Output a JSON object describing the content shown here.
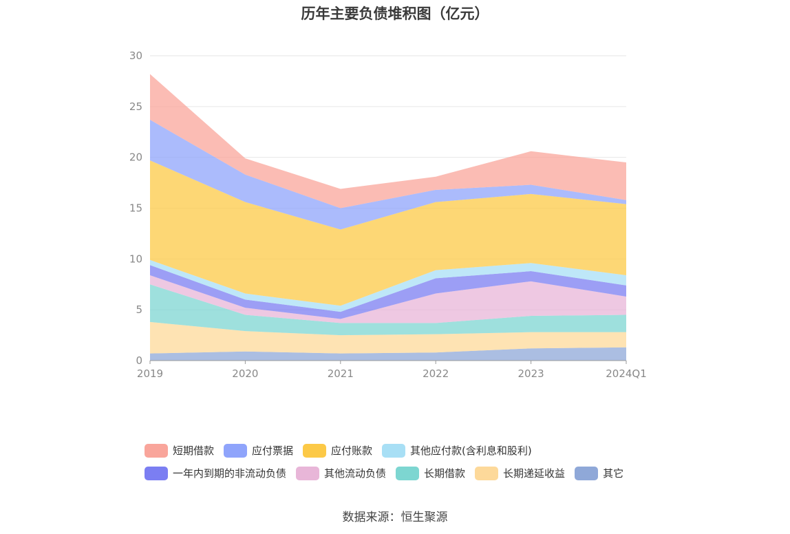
{
  "chart_data": {
    "type": "area",
    "stacked": true,
    "title": "历年主要负债堆积图（亿元）",
    "categories": [
      "2019",
      "2020",
      "2021",
      "2022",
      "2023",
      "2024Q1"
    ],
    "ylim": [
      0,
      30
    ],
    "yticks": [
      0,
      5,
      10,
      15,
      20,
      25,
      30
    ],
    "grid": "horizontal",
    "legend_position": "bottom",
    "series": [
      {
        "name": "其它",
        "color": "#8fa8d8",
        "values": [
          0.7,
          0.9,
          0.7,
          0.8,
          1.2,
          1.3
        ]
      },
      {
        "name": "长期递延收益",
        "color": "#fdd99a",
        "values": [
          3.1,
          2.0,
          1.8,
          1.8,
          1.6,
          1.5
        ]
      },
      {
        "name": "长期借款",
        "color": "#7dd6d1",
        "values": [
          3.7,
          1.6,
          1.2,
          1.1,
          1.6,
          1.7
        ]
      },
      {
        "name": "其他流动负债",
        "color": "#e8b6d8",
        "values": [
          0.9,
          0.7,
          0.4,
          2.9,
          3.4,
          1.8
        ]
      },
      {
        "name": "一年内到期的非流动负债",
        "color": "#7b7ef2",
        "values": [
          1.0,
          0.8,
          0.7,
          1.5,
          1.0,
          1.1
        ]
      },
      {
        "name": "其他应付款(含利息和股利)",
        "color": "#a8dff5",
        "values": [
          0.5,
          0.6,
          0.6,
          0.8,
          0.8,
          1.0
        ]
      },
      {
        "name": "应付账款",
        "color": "#fcc947",
        "values": [
          9.8,
          9.0,
          7.5,
          6.7,
          6.8,
          7.0
        ]
      },
      {
        "name": "应付票据",
        "color": "#8fa4fb",
        "values": [
          4.0,
          2.7,
          2.1,
          1.2,
          0.9,
          0.4
        ]
      },
      {
        "name": "短期借款",
        "color": "#f9a59b",
        "values": [
          4.5,
          1.6,
          1.9,
          1.3,
          3.3,
          3.7
        ]
      }
    ]
  },
  "legend": {
    "rows": [
      [
        {
          "label": "短期借款",
          "color": "#f9a59b"
        },
        {
          "label": "应付票据",
          "color": "#8fa4fb"
        },
        {
          "label": "应付账款",
          "color": "#fcc947"
        },
        {
          "label": "其他应付款(含利息和股利)",
          "color": "#a8dff5"
        }
      ],
      [
        {
          "label": "一年内到期的非流动负债",
          "color": "#7b7ef2"
        },
        {
          "label": "其他流动负债",
          "color": "#e8b6d8"
        },
        {
          "label": "长期借款",
          "color": "#7dd6d1"
        },
        {
          "label": "长期递延收益",
          "color": "#fdd99a"
        },
        {
          "label": "其它",
          "color": "#8fa8d8"
        }
      ]
    ]
  },
  "source": "数据来源：恒生聚源"
}
